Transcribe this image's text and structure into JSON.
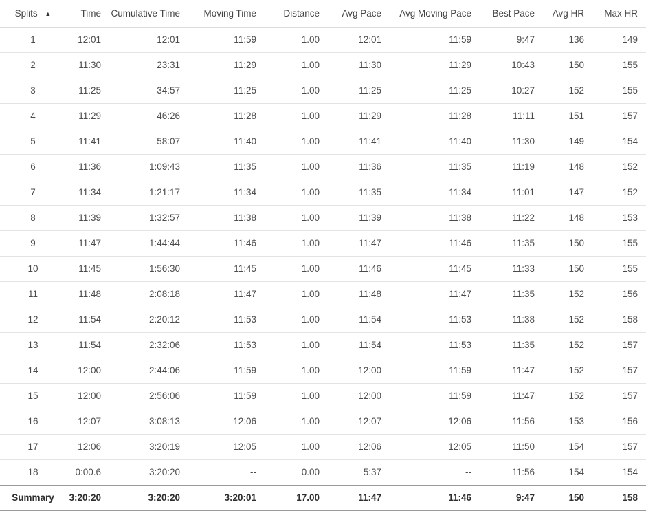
{
  "colors": {
    "background": "#ffffff",
    "body_text": "#4c4c4c",
    "header_text": "#454545",
    "summary_text": "#2e2e2e",
    "row_divider": "#e4e4e4",
    "header_divider": "#dcdcdc",
    "summary_top_divider": "#9a9a9a",
    "summary_bottom_divider": "#c6c6c6",
    "sort_arrow": "#333333"
  },
  "table": {
    "columns": [
      "Splits",
      "Time",
      "Cumulative Time",
      "Moving Time",
      "Distance",
      "Avg Pace",
      "Avg Moving Pace",
      "Best Pace",
      "Avg HR",
      "Max HR"
    ],
    "sort": {
      "column": "Splits",
      "direction": "ascending",
      "icon": "▲",
      "icon_name": "sort-ascending-icon"
    },
    "rows": [
      [
        "1",
        "12:01",
        "12:01",
        "11:59",
        "1.00",
        "12:01",
        "11:59",
        "9:47",
        "136",
        "149"
      ],
      [
        "2",
        "11:30",
        "23:31",
        "11:29",
        "1.00",
        "11:30",
        "11:29",
        "10:43",
        "150",
        "155"
      ],
      [
        "3",
        "11:25",
        "34:57",
        "11:25",
        "1.00",
        "11:25",
        "11:25",
        "10:27",
        "152",
        "155"
      ],
      [
        "4",
        "11:29",
        "46:26",
        "11:28",
        "1.00",
        "11:29",
        "11:28",
        "11:11",
        "151",
        "157"
      ],
      [
        "5",
        "11:41",
        "58:07",
        "11:40",
        "1.00",
        "11:41",
        "11:40",
        "11:30",
        "149",
        "154"
      ],
      [
        "6",
        "11:36",
        "1:09:43",
        "11:35",
        "1.00",
        "11:36",
        "11:35",
        "11:19",
        "148",
        "152"
      ],
      [
        "7",
        "11:34",
        "1:21:17",
        "11:34",
        "1.00",
        "11:35",
        "11:34",
        "11:01",
        "147",
        "152"
      ],
      [
        "8",
        "11:39",
        "1:32:57",
        "11:38",
        "1.00",
        "11:39",
        "11:38",
        "11:22",
        "148",
        "153"
      ],
      [
        "9",
        "11:47",
        "1:44:44",
        "11:46",
        "1.00",
        "11:47",
        "11:46",
        "11:35",
        "150",
        "155"
      ],
      [
        "10",
        "11:45",
        "1:56:30",
        "11:45",
        "1.00",
        "11:46",
        "11:45",
        "11:33",
        "150",
        "155"
      ],
      [
        "11",
        "11:48",
        "2:08:18",
        "11:47",
        "1.00",
        "11:48",
        "11:47",
        "11:35",
        "152",
        "156"
      ],
      [
        "12",
        "11:54",
        "2:20:12",
        "11:53",
        "1.00",
        "11:54",
        "11:53",
        "11:38",
        "152",
        "158"
      ],
      [
        "13",
        "11:54",
        "2:32:06",
        "11:53",
        "1.00",
        "11:54",
        "11:53",
        "11:35",
        "152",
        "157"
      ],
      [
        "14",
        "12:00",
        "2:44:06",
        "11:59",
        "1.00",
        "12:00",
        "11:59",
        "11:47",
        "152",
        "157"
      ],
      [
        "15",
        "12:00",
        "2:56:06",
        "11:59",
        "1.00",
        "12:00",
        "11:59",
        "11:47",
        "152",
        "157"
      ],
      [
        "16",
        "12:07",
        "3:08:13",
        "12:06",
        "1.00",
        "12:07",
        "12:06",
        "11:56",
        "153",
        "156"
      ],
      [
        "17",
        "12:06",
        "3:20:19",
        "12:05",
        "1.00",
        "12:06",
        "12:05",
        "11:50",
        "154",
        "157"
      ],
      [
        "18",
        "0:00.6",
        "3:20:20",
        "--",
        "0.00",
        "5:37",
        "--",
        "11:56",
        "154",
        "154"
      ]
    ],
    "summary": [
      "Summary",
      "3:20:20",
      "3:20:20",
      "3:20:01",
      "17.00",
      "11:47",
      "11:46",
      "9:47",
      "150",
      "158"
    ]
  }
}
